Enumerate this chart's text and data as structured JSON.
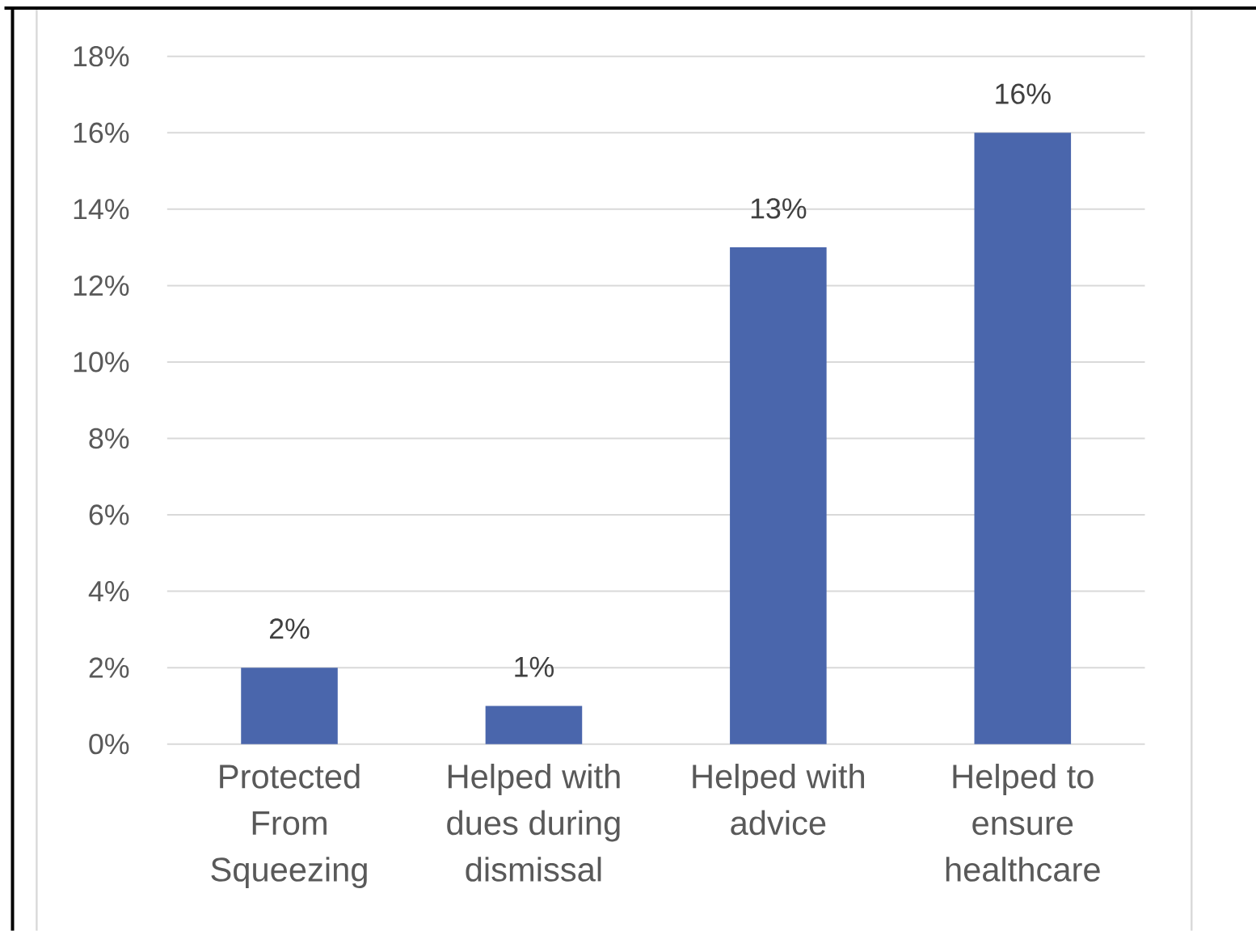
{
  "chart_data": {
    "type": "bar",
    "categories": [
      "Protected From Squeezing",
      "Helped with dues during dismissal",
      "Helped with advice",
      "Helped to ensure healthcare"
    ],
    "values": [
      2,
      1,
      13,
      16
    ],
    "color": "#4a66ac",
    "value_labels": [
      "2%",
      "1%",
      "13%",
      "16%"
    ],
    "ylim": [
      0,
      18
    ],
    "yticks": [
      {
        "value": 0,
        "label": "0%"
      },
      {
        "value": 2,
        "label": "2%"
      },
      {
        "value": 4,
        "label": "4%"
      },
      {
        "value": 6,
        "label": "6%"
      },
      {
        "value": 8,
        "label": "8%"
      },
      {
        "value": 10,
        "label": "10%"
      },
      {
        "value": 12,
        "label": "12%"
      },
      {
        "value": 14,
        "label": "14%"
      },
      {
        "value": 16,
        "label": "16%"
      },
      {
        "value": 18,
        "label": "18%"
      }
    ],
    "grid": "y"
  }
}
